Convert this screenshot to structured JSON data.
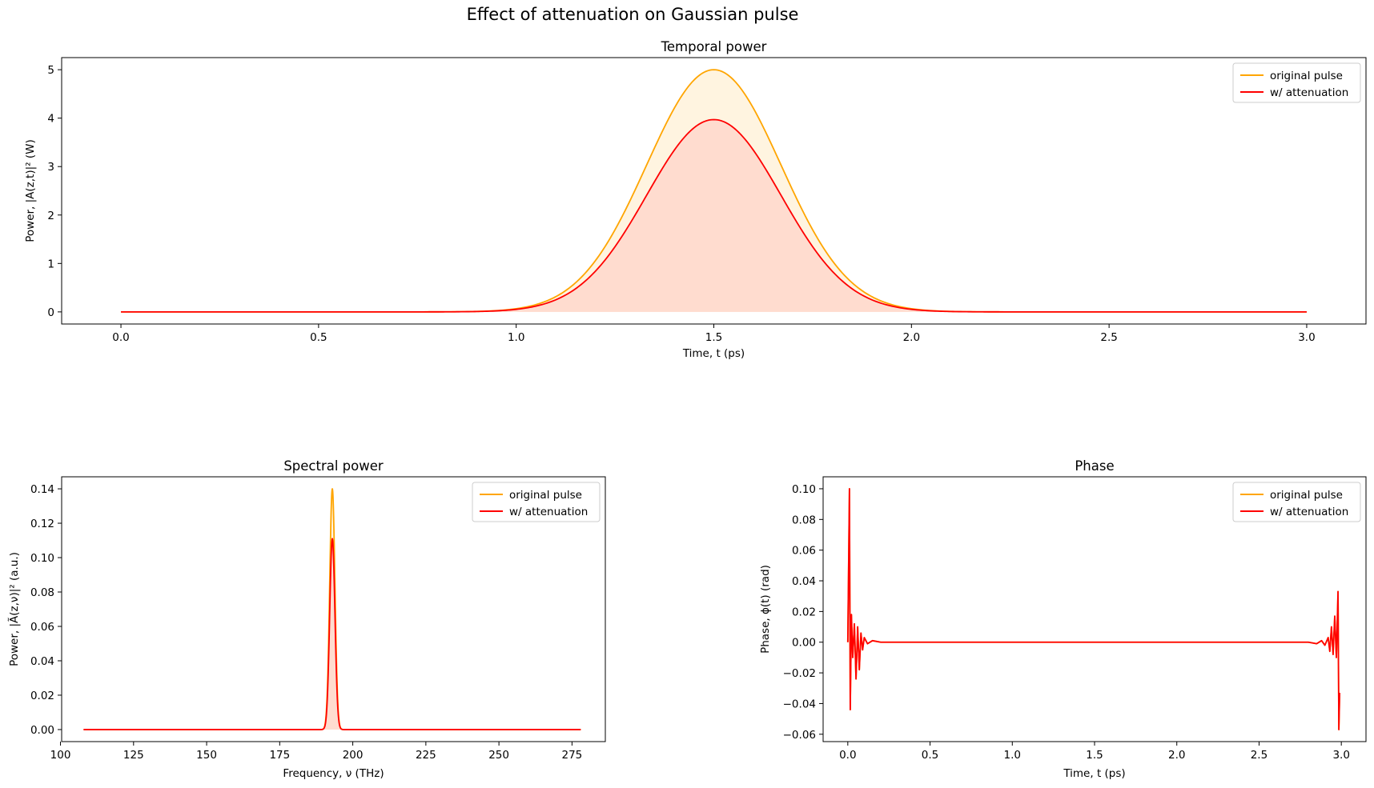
{
  "figure": {
    "suptitle": "Effect of attenuation on Gaussian pulse"
  },
  "colors": {
    "original": "#ffa500",
    "attenuated": "#ff0000",
    "original_fill": "#fff4e0",
    "attenuated_fill": "#ffdccf"
  },
  "chart_data": [
    {
      "id": "temporal",
      "type": "line",
      "title": "Temporal power",
      "xlabel": "Time, t (ps)",
      "ylabel": "Power, |A(z,t)|² (W)",
      "xlim": [
        -0.15,
        3.15
      ],
      "ylim": [
        -0.25,
        5.25
      ],
      "xticks": [
        0.0,
        0.5,
        1.0,
        1.5,
        2.0,
        2.5,
        3.0
      ],
      "xtick_labels": [
        "0.0",
        "0.5",
        "1.0",
        "1.5",
        "2.0",
        "2.5",
        "3.0"
      ],
      "yticks": [
        0,
        1,
        2,
        3,
        4,
        5
      ],
      "ytick_labels": [
        "0",
        "1",
        "2",
        "3",
        "4",
        "5"
      ],
      "legend_position": "upper-right",
      "filled": true,
      "x_range": [
        0.0,
        3.0
      ],
      "series": [
        {
          "name": "original pulse",
          "kind": "gaussian",
          "peak": 5.0,
          "center": 1.5,
          "sigma": 0.17
        },
        {
          "name": "w/ attenuation",
          "kind": "gaussian",
          "peak": 3.97,
          "center": 1.5,
          "sigma": 0.17
        }
      ]
    },
    {
      "id": "spectral",
      "type": "line",
      "title": "Spectral power",
      "xlabel": "Frequency, ν (THz)",
      "ylabel": "Power, |Ã(z,ν)|² (a.u.)",
      "xlim": [
        100.4,
        286.4
      ],
      "ylim": [
        -0.007,
        0.147
      ],
      "xticks": [
        100,
        125,
        150,
        175,
        200,
        225,
        250,
        275
      ],
      "xtick_labels": [
        "100",
        "125",
        "150",
        "175",
        "200",
        "225",
        "250",
        "275"
      ],
      "yticks": [
        0.0,
        0.02,
        0.04,
        0.06,
        0.08,
        0.1,
        0.12,
        0.14
      ],
      "ytick_labels": [
        "0.00",
        "0.02",
        "0.04",
        "0.06",
        "0.08",
        "0.10",
        "0.12",
        "0.14"
      ],
      "legend_position": "upper-right",
      "filled": true,
      "x_range": [
        107.9,
        278.0
      ],
      "series": [
        {
          "name": "original pulse",
          "kind": "gaussian",
          "peak": 0.14,
          "center": 193.0,
          "sigma": 0.9
        },
        {
          "name": "w/ attenuation",
          "kind": "gaussian",
          "peak": 0.111,
          "center": 193.0,
          "sigma": 0.9
        }
      ]
    },
    {
      "id": "phase",
      "type": "line",
      "title": "Phase",
      "xlabel": "Time, t (ps)",
      "ylabel": "Phase, ϕ(t) (rad)",
      "xlim": [
        -0.15,
        3.15
      ],
      "ylim": [
        -0.0648,
        0.1078
      ],
      "xticks": [
        0.0,
        0.5,
        1.0,
        1.5,
        2.0,
        2.5,
        3.0
      ],
      "xtick_labels": [
        "0.0",
        "0.5",
        "1.0",
        "1.5",
        "2.0",
        "2.5",
        "3.0"
      ],
      "yticks": [
        -0.06,
        -0.04,
        -0.02,
        0.0,
        0.02,
        0.04,
        0.06,
        0.08,
        0.1
      ],
      "ytick_labels": [
        "−0.06",
        "−0.04",
        "−0.02",
        "0.00",
        "0.02",
        "0.04",
        "0.06",
        "0.08",
        "0.10"
      ],
      "legend_position": "upper-right",
      "filled": false,
      "series": [
        {
          "name": "original pulse",
          "x": [
            0.0,
            0.01,
            0.015,
            0.022,
            0.03,
            0.04,
            0.05,
            0.06,
            0.07,
            0.08,
            0.09,
            0.1,
            0.12,
            0.15,
            0.2,
            0.5,
            1.0,
            1.5,
            2.0,
            2.5,
            2.8,
            2.85,
            2.88,
            2.9,
            2.92,
            2.93,
            2.94,
            2.95,
            2.96,
            2.97,
            2.98,
            2.985,
            2.99
          ],
          "y": [
            0.0,
            0.1,
            -0.044,
            0.018,
            -0.01,
            0.012,
            -0.024,
            0.01,
            -0.018,
            0.006,
            -0.005,
            0.003,
            -0.001,
            0.001,
            0.0,
            0.0,
            0.0,
            0.0,
            0.0,
            0.0,
            0.0,
            -0.001,
            0.001,
            -0.002,
            0.003,
            -0.006,
            0.01,
            -0.008,
            0.017,
            -0.01,
            0.033,
            -0.057,
            -0.033
          ]
        },
        {
          "name": "w/ attenuation",
          "x": [
            0.0,
            0.01,
            0.015,
            0.022,
            0.03,
            0.04,
            0.05,
            0.06,
            0.07,
            0.08,
            0.09,
            0.1,
            0.12,
            0.15,
            0.2,
            0.5,
            1.0,
            1.5,
            2.0,
            2.5,
            2.8,
            2.85,
            2.88,
            2.9,
            2.92,
            2.93,
            2.94,
            2.95,
            2.96,
            2.97,
            2.98,
            2.985,
            2.99
          ],
          "y": [
            0.0,
            0.1,
            -0.044,
            0.018,
            -0.01,
            0.012,
            -0.024,
            0.01,
            -0.018,
            0.006,
            -0.005,
            0.003,
            -0.001,
            0.001,
            0.0,
            0.0,
            0.0,
            0.0,
            0.0,
            0.0,
            0.0,
            -0.001,
            0.001,
            -0.002,
            0.003,
            -0.006,
            0.01,
            -0.008,
            0.017,
            -0.01,
            0.033,
            -0.057,
            -0.033
          ]
        }
      ]
    }
  ]
}
